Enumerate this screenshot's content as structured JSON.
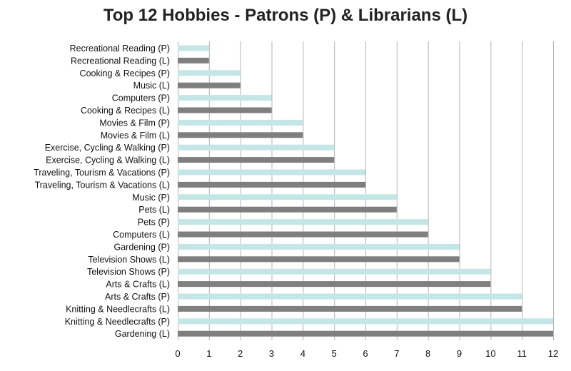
{
  "chart_data": {
    "type": "bar",
    "orientation": "horizontal",
    "title": "Top 12 Hobbies - Patrons (P) & Librarians (L)",
    "xlim": [
      0,
      12
    ],
    "x_ticks": [
      0,
      1,
      2,
      3,
      4,
      5,
      6,
      7,
      8,
      9,
      10,
      11,
      12
    ],
    "grid": "vertical",
    "colors": {
      "P": "#c5e6e7",
      "L": "#7f7f7f"
    },
    "bars": [
      {
        "label": "Recreational Reading (P)",
        "group": "P",
        "value": 1
      },
      {
        "label": "Recreational Reading (L)",
        "group": "L",
        "value": 1
      },
      {
        "label": "Cooking & Recipes (P)",
        "group": "P",
        "value": 2
      },
      {
        "label": "Music (L)",
        "group": "L",
        "value": 2
      },
      {
        "label": "Computers (P)",
        "group": "P",
        "value": 3
      },
      {
        "label": "Cooking & Recipes (L)",
        "group": "L",
        "value": 3
      },
      {
        "label": "Movies & Film (P)",
        "group": "P",
        "value": 4
      },
      {
        "label": "Movies & Film (L)",
        "group": "L",
        "value": 4
      },
      {
        "label": "Exercise, Cycling & Walking (P)",
        "group": "P",
        "value": 5
      },
      {
        "label": "Exercise, Cycling & Walking (L)",
        "group": "L",
        "value": 5
      },
      {
        "label": "Traveling, Tourism & Vacations (P)",
        "group": "P",
        "value": 6
      },
      {
        "label": "Traveling, Tourism & Vacations (L)",
        "group": "L",
        "value": 6
      },
      {
        "label": "Music (P)",
        "group": "P",
        "value": 7
      },
      {
        "label": "Pets (L)",
        "group": "L",
        "value": 7
      },
      {
        "label": "Pets (P)",
        "group": "P",
        "value": 8
      },
      {
        "label": "Computers (L)",
        "group": "L",
        "value": 8
      },
      {
        "label": "Gardening (P)",
        "group": "P",
        "value": 9
      },
      {
        "label": "Television Shows (L)",
        "group": "L",
        "value": 9
      },
      {
        "label": "Television Shows (P)",
        "group": "P",
        "value": 10
      },
      {
        "label": "Arts & Crafts (L)",
        "group": "L",
        "value": 10
      },
      {
        "label": "Arts & Crafts (P)",
        "group": "P",
        "value": 11
      },
      {
        "label": "Knitting & Needlecrafts (L)",
        "group": "L",
        "value": 11
      },
      {
        "label": "Knitting & Needlecrafts (P)",
        "group": "P",
        "value": 12
      },
      {
        "label": "Gardening (L)",
        "group": "L",
        "value": 12
      }
    ]
  }
}
